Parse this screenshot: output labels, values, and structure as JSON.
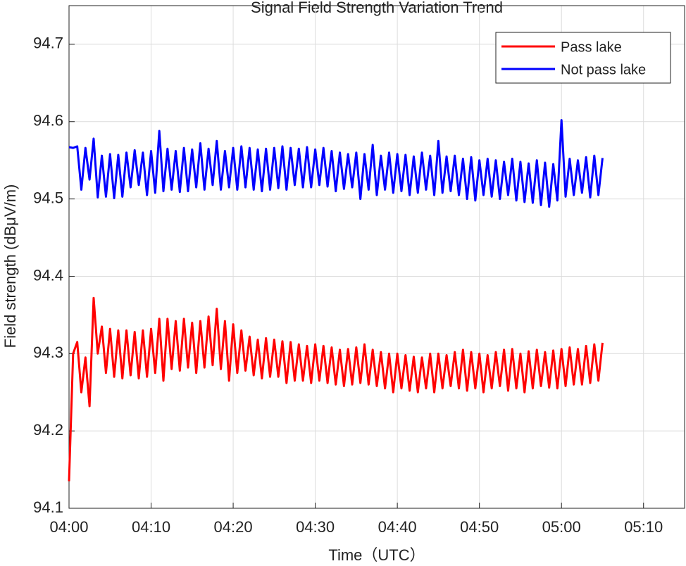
{
  "chart_data": {
    "type": "line",
    "title": "Signal Field Strength Variation Trend",
    "x_label": "Time（UTC）",
    "y_label": "Field strength (dBμV/m)",
    "xlim": [
      0,
      75
    ],
    "ylim": [
      94.1,
      94.75
    ],
    "xticks": [
      {
        "value": 0,
        "label": "04:00"
      },
      {
        "value": 10,
        "label": "04:10"
      },
      {
        "value": 20,
        "label": "04:20"
      },
      {
        "value": 30,
        "label": "04:30"
      },
      {
        "value": 40,
        "label": "04:40"
      },
      {
        "value": 50,
        "label": "04:50"
      },
      {
        "value": 60,
        "label": "05:00"
      },
      {
        "value": 70,
        "label": "05:10"
      }
    ],
    "yticks": [
      94.1,
      94.2,
      94.3,
      94.4,
      94.5,
      94.6,
      94.7
    ],
    "grid": true,
    "legend": "upper right",
    "x": [
      0,
      0.5,
      1,
      1.5,
      2,
      2.5,
      3,
      3.5,
      4,
      4.5,
      5,
      5.5,
      6,
      6.5,
      7,
      7.5,
      8,
      8.5,
      9,
      9.5,
      10,
      10.5,
      11,
      11.5,
      12,
      12.5,
      13,
      13.5,
      14,
      14.5,
      15,
      15.5,
      16,
      16.5,
      17,
      17.5,
      18,
      18.5,
      19,
      19.5,
      20,
      20.5,
      21,
      21.5,
      22,
      22.5,
      23,
      23.5,
      24,
      24.5,
      25,
      25.5,
      26,
      26.5,
      27,
      27.5,
      28,
      28.5,
      29,
      29.5,
      30,
      30.5,
      31,
      31.5,
      32,
      32.5,
      33,
      33.5,
      34,
      34.5,
      35,
      35.5,
      36,
      36.5,
      37,
      37.5,
      38,
      38.5,
      39,
      39.5,
      40,
      40.5,
      41,
      41.5,
      42,
      42.5,
      43,
      43.5,
      44,
      44.5,
      45,
      45.5,
      46,
      46.5,
      47,
      47.5,
      48,
      48.5,
      49,
      49.5,
      50,
      50.5,
      51,
      51.5,
      52,
      52.5,
      53,
      53.5,
      54,
      54.5,
      55,
      55.5,
      56,
      56.5,
      57,
      57.5,
      58,
      58.5,
      59,
      59.5,
      60,
      60.5,
      61,
      61.5,
      62,
      62.5,
      63,
      63.5,
      64,
      64.5,
      65
    ],
    "series": [
      {
        "name": "Pass lake",
        "color": "#ff0000",
        "values": [
          94.135,
          94.3,
          94.315,
          94.25,
          94.295,
          94.232,
          94.372,
          94.3,
          94.335,
          94.275,
          94.332,
          94.27,
          94.33,
          94.268,
          94.33,
          94.272,
          94.328,
          94.268,
          94.33,
          94.27,
          94.332,
          94.275,
          94.345,
          94.265,
          94.345,
          94.28,
          94.342,
          94.278,
          94.345,
          94.282,
          94.34,
          94.275,
          94.342,
          94.282,
          94.348,
          94.285,
          94.358,
          94.28,
          94.342,
          94.265,
          94.338,
          94.275,
          94.33,
          94.278,
          94.322,
          94.272,
          94.318,
          94.268,
          94.32,
          94.27,
          94.318,
          94.27,
          94.316,
          94.262,
          94.315,
          94.265,
          94.312,
          94.265,
          94.31,
          94.262,
          94.312,
          94.265,
          94.31,
          94.262,
          94.308,
          94.26,
          94.305,
          94.258,
          94.306,
          94.26,
          94.308,
          94.262,
          94.312,
          94.26,
          94.305,
          94.258,
          94.302,
          94.255,
          94.3,
          94.25,
          94.3,
          94.255,
          94.298,
          94.252,
          94.296,
          94.25,
          94.295,
          94.255,
          94.3,
          94.25,
          94.3,
          94.255,
          94.298,
          94.258,
          94.302,
          94.255,
          94.305,
          94.252,
          94.302,
          94.255,
          94.3,
          94.25,
          94.298,
          94.255,
          94.302,
          94.258,
          94.305,
          94.252,
          94.306,
          94.255,
          94.3,
          94.25,
          94.303,
          94.255,
          94.305,
          94.258,
          94.302,
          94.256,
          94.304,
          94.255,
          94.306,
          94.258,
          94.308,
          94.26,
          94.306,
          94.26,
          94.31,
          94.262,
          94.312,
          94.265,
          94.314
        ]
      },
      {
        "name": "Not pass lake",
        "color": "#0000ff",
        "values": [
          94.567,
          94.566,
          94.568,
          94.512,
          94.566,
          94.525,
          94.578,
          94.502,
          94.556,
          94.503,
          94.558,
          94.501,
          94.557,
          94.503,
          94.56,
          94.515,
          94.563,
          94.518,
          94.56,
          94.505,
          94.562,
          94.508,
          94.588,
          94.51,
          94.565,
          94.512,
          94.562,
          94.509,
          94.566,
          94.51,
          94.564,
          94.515,
          94.572,
          94.512,
          94.565,
          94.518,
          94.575,
          94.512,
          94.562,
          94.515,
          94.566,
          94.512,
          94.568,
          94.515,
          94.566,
          94.512,
          94.564,
          94.51,
          94.565,
          94.512,
          94.566,
          94.514,
          94.568,
          94.512,
          94.566,
          94.518,
          94.565,
          94.515,
          94.567,
          94.515,
          94.564,
          94.518,
          94.566,
          94.516,
          94.562,
          94.51,
          94.56,
          94.513,
          94.558,
          94.515,
          94.56,
          94.5,
          94.558,
          94.512,
          94.57,
          94.505,
          94.556,
          94.512,
          94.56,
          94.508,
          94.558,
          94.51,
          94.557,
          94.505,
          94.555,
          94.508,
          94.56,
          94.512,
          94.556,
          94.505,
          94.575,
          94.508,
          94.555,
          94.51,
          94.556,
          94.505,
          94.552,
          94.5,
          94.554,
          94.498,
          94.55,
          94.505,
          94.552,
          94.503,
          94.55,
          94.5,
          94.548,
          94.505,
          94.552,
          94.498,
          94.548,
          94.496,
          94.546,
          94.495,
          94.55,
          94.492,
          94.547,
          94.49,
          94.545,
          94.498,
          94.602,
          94.503,
          94.552,
          94.505,
          94.55,
          94.508,
          94.554,
          94.502,
          94.556,
          94.505,
          94.553
        ]
      }
    ]
  }
}
